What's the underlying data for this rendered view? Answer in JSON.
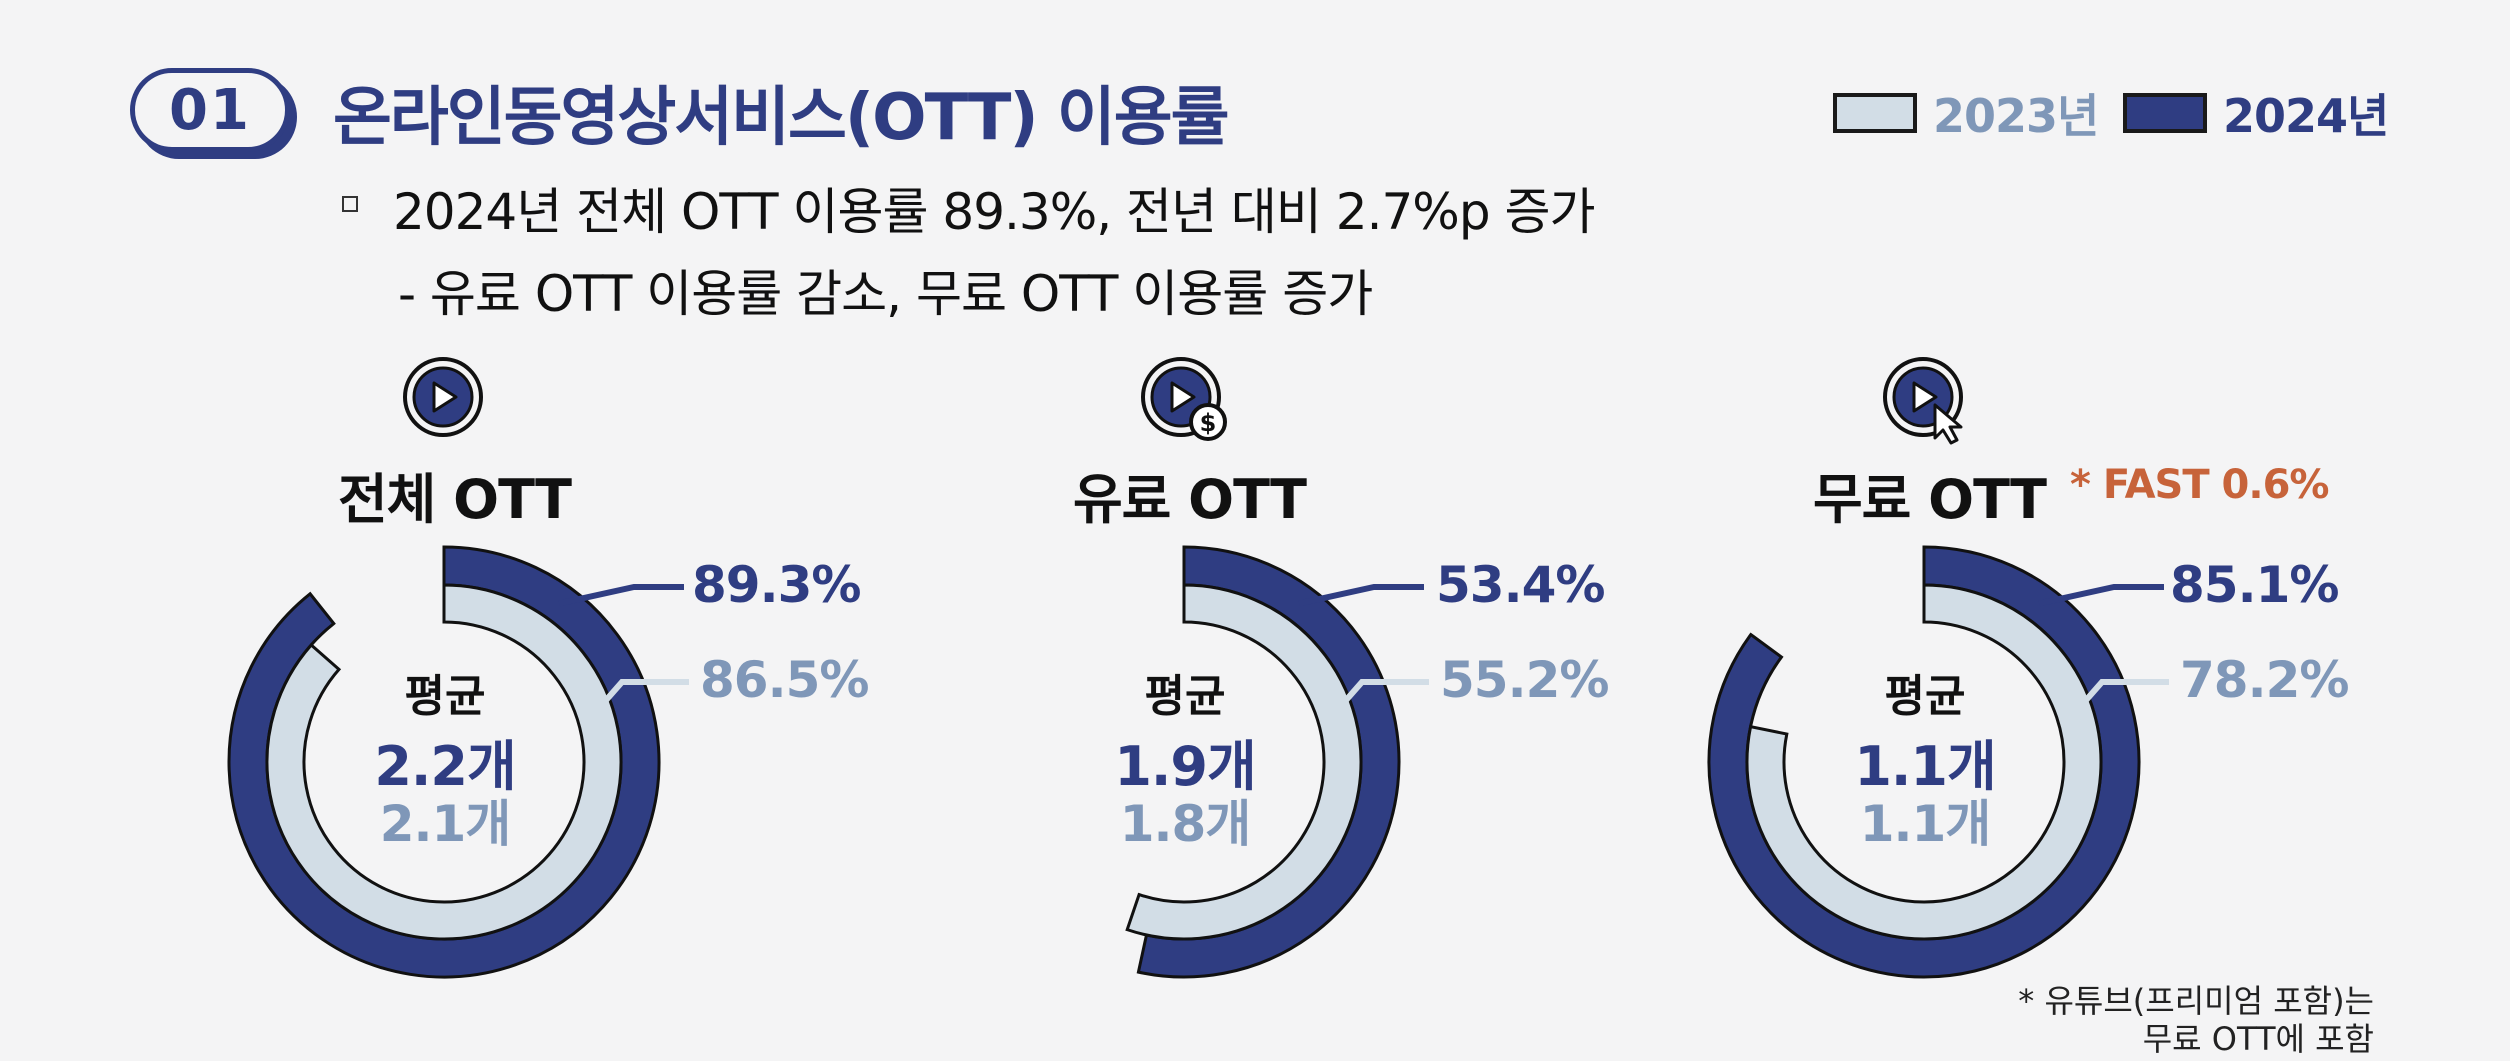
{
  "header": {
    "number": "01",
    "title": "온라인동영상서비스(OTT) 이용률"
  },
  "legend": [
    {
      "label": "2023년",
      "color": "#d2dde6"
    },
    {
      "label": "2024년",
      "color": "#2f3d82"
    }
  ],
  "summary": {
    "line1": "2024년 전체 OTT 이용률 89.3%, 전년 대비 2.7%p 증가",
    "line2": "- 유료 OTT 이용률 감소, 무료 OTT 이용률 증가"
  },
  "center_label": "평균",
  "colors": {
    "y2024": "#2f3d82",
    "y2023": "#d2dde6",
    "y2023_text": "#7f97b8",
    "accent": "#c7633a"
  },
  "icons": [
    "play-icon",
    "play-dollar-icon",
    "play-cursor-icon"
  ],
  "chart_data": [
    {
      "type": "donut",
      "title": "전체 OTT",
      "series": [
        {
          "name": "2024년",
          "value": 89.3,
          "label": "89.3%",
          "avg": "2.2개"
        },
        {
          "name": "2023년",
          "value": 86.5,
          "label": "86.5%",
          "avg": "2.1개"
        }
      ],
      "ylim": [
        0,
        100
      ]
    },
    {
      "type": "donut",
      "title": "유료 OTT",
      "series": [
        {
          "name": "2024년",
          "value": 53.4,
          "label": "53.4%",
          "avg": "1.9개"
        },
        {
          "name": "2023년",
          "value": 55.2,
          "label": "55.2%",
          "avg": "1.8개"
        }
      ],
      "ylim": [
        0,
        100
      ]
    },
    {
      "type": "donut",
      "title": "무료 OTT",
      "note": "* FAST 0.6%",
      "series": [
        {
          "name": "2024년",
          "value": 85.1,
          "label": "85.1%",
          "avg": "1.1개"
        },
        {
          "name": "2023년",
          "value": 78.2,
          "label": "78.2%",
          "avg": "1.1개"
        }
      ],
      "ylim": [
        0,
        100
      ]
    }
  ],
  "footnote": {
    "line1": "* 유튜브(프리미엄  포함)는",
    "line2": "무료  OTT에 포함"
  }
}
